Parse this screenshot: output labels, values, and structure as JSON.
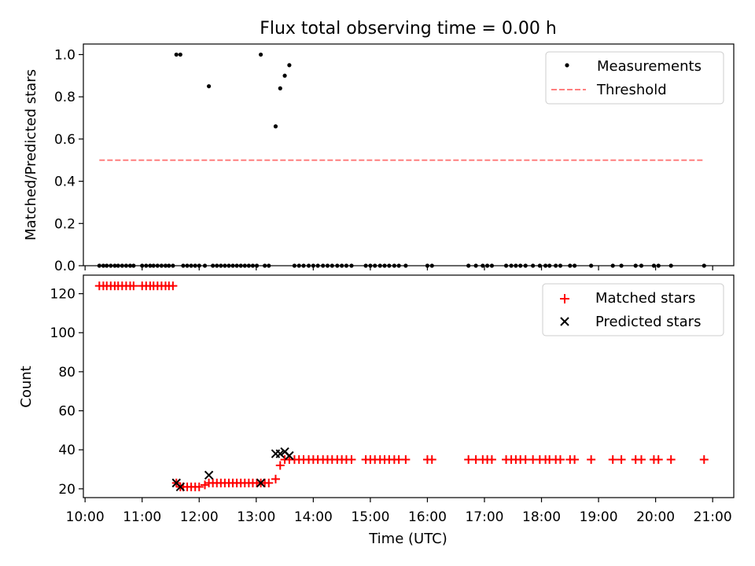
{
  "chart_data": [
    {
      "type": "scatter",
      "title": "Flux total observing time = 0.00 h",
      "xlabel": "",
      "ylabel": "Matched/Predicted stars",
      "xlim": [
        9.97,
        21.37
      ],
      "ylim": [
        0.0,
        1.05
      ],
      "yticks": [
        0.0,
        0.2,
        0.4,
        0.6,
        0.8,
        1.0
      ],
      "ytick_labels": [
        "0.0",
        "0.2",
        "0.4",
        "0.6",
        "0.8",
        "1.0"
      ],
      "legend_position": "top-right",
      "series": [
        {
          "name": "Measurements",
          "marker": "dot",
          "color": "#000000",
          "points": [
            [
              10.25,
              0
            ],
            [
              10.32,
              0
            ],
            [
              10.38,
              0
            ],
            [
              10.45,
              0
            ],
            [
              10.52,
              0
            ],
            [
              10.58,
              0
            ],
            [
              10.65,
              0
            ],
            [
              10.72,
              0
            ],
            [
              10.79,
              0
            ],
            [
              10.85,
              0
            ],
            [
              11.0,
              0
            ],
            [
              11.07,
              0
            ],
            [
              11.14,
              0
            ],
            [
              11.2,
              0
            ],
            [
              11.27,
              0
            ],
            [
              11.34,
              0
            ],
            [
              11.41,
              0
            ],
            [
              11.47,
              0
            ],
            [
              11.54,
              0
            ],
            [
              11.6,
              1.0
            ],
            [
              11.67,
              1.0
            ],
            [
              11.72,
              0
            ],
            [
              11.79,
              0
            ],
            [
              11.86,
              0
            ],
            [
              11.93,
              0
            ],
            [
              12.0,
              0
            ],
            [
              12.1,
              0
            ],
            [
              12.17,
              0.85
            ],
            [
              12.24,
              0
            ],
            [
              12.31,
              0
            ],
            [
              12.38,
              0
            ],
            [
              12.45,
              0
            ],
            [
              12.52,
              0
            ],
            [
              12.59,
              0
            ],
            [
              12.66,
              0
            ],
            [
              12.73,
              0
            ],
            [
              12.8,
              0
            ],
            [
              12.87,
              0
            ],
            [
              12.94,
              0
            ],
            [
              13.01,
              0
            ],
            [
              13.08,
              1.0
            ],
            [
              13.15,
              0
            ],
            [
              13.22,
              0
            ],
            [
              13.34,
              0.66
            ],
            [
              13.42,
              0.84
            ],
            [
              13.5,
              0.9
            ],
            [
              13.58,
              0.95
            ],
            [
              13.67,
              0
            ],
            [
              13.75,
              0
            ],
            [
              13.83,
              0
            ],
            [
              13.92,
              0
            ],
            [
              14.0,
              0
            ],
            [
              14.08,
              0
            ],
            [
              14.17,
              0
            ],
            [
              14.25,
              0
            ],
            [
              14.33,
              0
            ],
            [
              14.42,
              0
            ],
            [
              14.5,
              0
            ],
            [
              14.58,
              0
            ],
            [
              14.67,
              0
            ],
            [
              14.92,
              0
            ],
            [
              15.0,
              0
            ],
            [
              15.08,
              0
            ],
            [
              15.17,
              0
            ],
            [
              15.25,
              0
            ],
            [
              15.33,
              0
            ],
            [
              15.42,
              0
            ],
            [
              15.5,
              0
            ],
            [
              15.62,
              0
            ],
            [
              16.0,
              0
            ],
            [
              16.08,
              0
            ],
            [
              16.72,
              0
            ],
            [
              16.85,
              0
            ],
            [
              16.97,
              0
            ],
            [
              17.05,
              0
            ],
            [
              17.13,
              0
            ],
            [
              17.38,
              0
            ],
            [
              17.47,
              0
            ],
            [
              17.55,
              0
            ],
            [
              17.63,
              0
            ],
            [
              17.72,
              0
            ],
            [
              17.85,
              0
            ],
            [
              17.97,
              0
            ],
            [
              18.07,
              0
            ],
            [
              18.14,
              0
            ],
            [
              18.25,
              0
            ],
            [
              18.33,
              0
            ],
            [
              18.5,
              0
            ],
            [
              18.58,
              0
            ],
            [
              18.87,
              0
            ],
            [
              19.25,
              0
            ],
            [
              19.4,
              0
            ],
            [
              19.65,
              0
            ],
            [
              19.75,
              0
            ],
            [
              19.97,
              0
            ],
            [
              20.05,
              0
            ],
            [
              20.27,
              0
            ],
            [
              20.85,
              0
            ]
          ]
        },
        {
          "name": "Threshold",
          "marker": "dashed-line",
          "color": "#ff7f7f",
          "points": [
            [
              10.25,
              0.5
            ],
            [
              20.85,
              0.5
            ]
          ]
        }
      ]
    },
    {
      "type": "scatter",
      "title": "",
      "xlabel": "Time (UTC)",
      "ylabel": "Count",
      "xlim": [
        9.97,
        21.37
      ],
      "ylim": [
        15.5,
        129.5
      ],
      "yticks": [
        20,
        40,
        60,
        80,
        100,
        120
      ],
      "ytick_labels": [
        "20",
        "40",
        "60",
        "80",
        "100",
        "120"
      ],
      "xticks": [
        10,
        11,
        12,
        13,
        14,
        15,
        16,
        17,
        18,
        19,
        20,
        21
      ],
      "xtick_labels": [
        "10:00",
        "11:00",
        "12:00",
        "13:00",
        "14:00",
        "15:00",
        "16:00",
        "17:00",
        "18:00",
        "19:00",
        "20:00",
        "21:00"
      ],
      "legend_position": "top-right",
      "series": [
        {
          "name": "Matched stars",
          "marker": "plus",
          "color": "#ff0000",
          "points": [
            [
              10.25,
              124
            ],
            [
              10.32,
              124
            ],
            [
              10.38,
              124
            ],
            [
              10.45,
              124
            ],
            [
              10.52,
              124
            ],
            [
              10.58,
              124
            ],
            [
              10.65,
              124
            ],
            [
              10.72,
              124
            ],
            [
              10.79,
              124
            ],
            [
              10.85,
              124
            ],
            [
              11.0,
              124
            ],
            [
              11.07,
              124
            ],
            [
              11.14,
              124
            ],
            [
              11.2,
              124
            ],
            [
              11.27,
              124
            ],
            [
              11.34,
              124
            ],
            [
              11.41,
              124
            ],
            [
              11.47,
              124
            ],
            [
              11.54,
              124
            ],
            [
              11.6,
              23
            ],
            [
              11.67,
              21
            ],
            [
              11.72,
              21
            ],
            [
              11.79,
              21
            ],
            [
              11.86,
              21
            ],
            [
              11.93,
              21
            ],
            [
              12.0,
              21
            ],
            [
              12.1,
              22
            ],
            [
              12.17,
              23
            ],
            [
              12.24,
              23
            ],
            [
              12.31,
              23
            ],
            [
              12.38,
              23
            ],
            [
              12.45,
              23
            ],
            [
              12.52,
              23
            ],
            [
              12.59,
              23
            ],
            [
              12.66,
              23
            ],
            [
              12.73,
              23
            ],
            [
              12.8,
              23
            ],
            [
              12.87,
              23
            ],
            [
              12.94,
              23
            ],
            [
              13.01,
              23
            ],
            [
              13.08,
              23
            ],
            [
              13.15,
              23
            ],
            [
              13.22,
              23
            ],
            [
              13.34,
              25
            ],
            [
              13.42,
              32
            ],
            [
              13.5,
              35
            ],
            [
              13.58,
              35
            ],
            [
              13.67,
              35
            ],
            [
              13.75,
              35
            ],
            [
              13.83,
              35
            ],
            [
              13.92,
              35
            ],
            [
              14.0,
              35
            ],
            [
              14.08,
              35
            ],
            [
              14.17,
              35
            ],
            [
              14.25,
              35
            ],
            [
              14.33,
              35
            ],
            [
              14.42,
              35
            ],
            [
              14.5,
              35
            ],
            [
              14.58,
              35
            ],
            [
              14.67,
              35
            ],
            [
              14.92,
              35
            ],
            [
              15.0,
              35
            ],
            [
              15.08,
              35
            ],
            [
              15.17,
              35
            ],
            [
              15.25,
              35
            ],
            [
              15.33,
              35
            ],
            [
              15.42,
              35
            ],
            [
              15.5,
              35
            ],
            [
              15.62,
              35
            ],
            [
              16.0,
              35
            ],
            [
              16.08,
              35
            ],
            [
              16.72,
              35
            ],
            [
              16.85,
              35
            ],
            [
              16.97,
              35
            ],
            [
              17.05,
              35
            ],
            [
              17.13,
              35
            ],
            [
              17.38,
              35
            ],
            [
              17.47,
              35
            ],
            [
              17.55,
              35
            ],
            [
              17.63,
              35
            ],
            [
              17.72,
              35
            ],
            [
              17.85,
              35
            ],
            [
              17.97,
              35
            ],
            [
              18.07,
              35
            ],
            [
              18.14,
              35
            ],
            [
              18.25,
              35
            ],
            [
              18.33,
              35
            ],
            [
              18.5,
              35
            ],
            [
              18.58,
              35
            ],
            [
              18.87,
              35
            ],
            [
              19.25,
              35
            ],
            [
              19.4,
              35
            ],
            [
              19.65,
              35
            ],
            [
              19.75,
              35
            ],
            [
              19.97,
              35
            ],
            [
              20.05,
              35
            ],
            [
              20.27,
              35
            ],
            [
              20.85,
              35
            ]
          ]
        },
        {
          "name": "Predicted stars",
          "marker": "cross",
          "color": "#000000",
          "points": [
            [
              11.6,
              23
            ],
            [
              11.67,
              21
            ],
            [
              12.17,
              27
            ],
            [
              13.08,
              23
            ],
            [
              13.34,
              38
            ],
            [
              13.42,
              38
            ],
            [
              13.5,
              39
            ],
            [
              13.58,
              37
            ]
          ]
        }
      ]
    }
  ]
}
